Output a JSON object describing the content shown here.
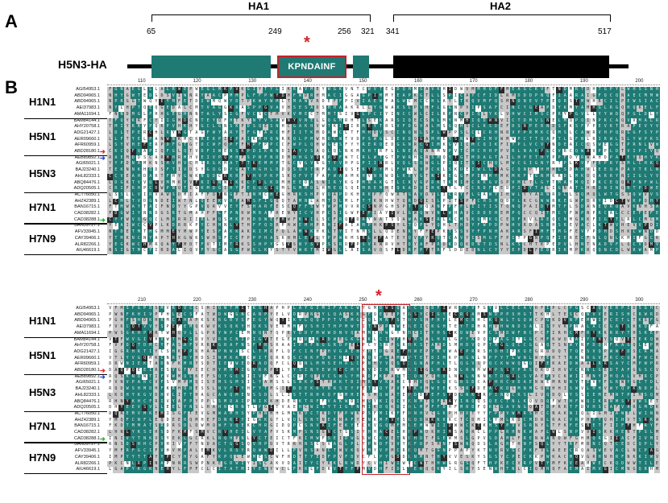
{
  "panel_a": {
    "letter": "A",
    "protein_label": "H5N3-HA",
    "domains": [
      {
        "name": "HA1",
        "start": "65",
        "end": "321"
      },
      {
        "name": "HA2",
        "start": "341",
        "end": "517"
      }
    ],
    "motif_start": "249",
    "motif_end": "256",
    "motif_text": "KPNDAINF",
    "motif_marker": "*"
  },
  "panel_b": {
    "letter": "B",
    "marker": "*",
    "groups": [
      {
        "name": "H1N1",
        "accessions": [
          "AGI54953.1",
          "ABD94965.1",
          "ABD94965.1",
          "AEI37983.1",
          "AMA11694.1"
        ]
      },
      {
        "name": "H5N1",
        "accessions": [
          "BAM84144.1",
          "AHY20758.1",
          "ADG21427.1",
          "AER09660.1",
          "AFR60959.1",
          "ABD28180.1"
        ]
      },
      {
        "name": "H5N3",
        "accessions": [
          "AEB89892.1",
          "AGI65021.1",
          "BAJ23240.1",
          "AHL82333.1",
          "ABQ84476.1",
          "ADQ20505.1"
        ]
      },
      {
        "name": "H7N1",
        "accessions": [
          "ACT76050.1",
          "AHZ42389.1",
          "BAN16715.1",
          "CAD38282.1",
          "CAD38288.1"
        ]
      },
      {
        "name": "H7N9",
        "accessions": [
          "BAN59727.1",
          "AFV33945.1",
          "CAY39406.1",
          "ALR82266.1",
          "AIU46619.1"
        ]
      }
    ],
    "blocks": [
      {
        "ruler": [
          "110",
          "120",
          "130",
          "140",
          "150",
          "160",
          "170",
          "180",
          "190",
          "200"
        ],
        "seeds": [
          11,
          23,
          37,
          51,
          67,
          83,
          97,
          113,
          127,
          141,
          157,
          173,
          191,
          211,
          229,
          241,
          257,
          269,
          283,
          293,
          307,
          311,
          331,
          347,
          359,
          373,
          389
        ]
      },
      {
        "ruler": [
          "210",
          "220",
          "230",
          "240",
          "250",
          "260",
          "270",
          "280",
          "290",
          "300"
        ],
        "seeds": [
          19,
          29,
          43,
          59,
          71,
          89,
          101,
          109,
          131,
          149,
          163,
          179,
          199,
          223,
          233,
          251,
          263,
          277,
          281,
          299,
          317,
          337,
          349,
          367,
          379,
          397,
          401
        ]
      }
    ],
    "colors": {
      "teal": "#1f7a74",
      "grey": "#c8c8c8",
      "dark": "#2a2a2a",
      "highlight": "#c8202a",
      "red_arrow": "#e02020",
      "blue_arrow": "#2040d0",
      "green_arrow": "#20b020"
    },
    "arrow_marks": [
      {
        "row": 10,
        "color": "red-arrow",
        "glyph": "➔"
      },
      {
        "row": 11,
        "color": "blue-arrow",
        "glyph": "➔"
      },
      {
        "row": 21,
        "color": "green-arrow",
        "glyph": "➔"
      }
    ]
  }
}
